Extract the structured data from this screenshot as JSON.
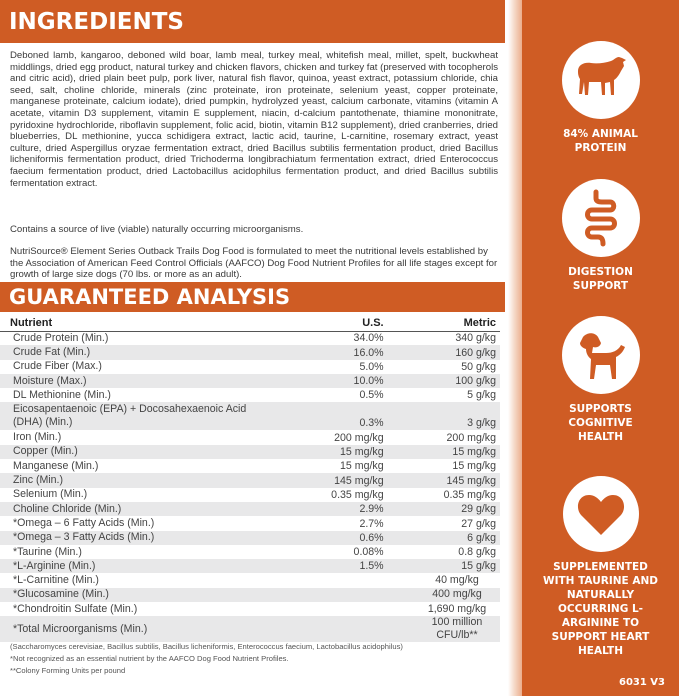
{
  "ingredients": {
    "title": "INGREDIENTS",
    "text": "Deboned lamb, kangaroo, deboned wild boar, lamb meal, turkey meal, whitefish meal, millet, spelt, buckwheat middlings, dried egg product, natural turkey and chicken flavors, chicken and turkey fat (preserved with tocopherols and citric acid), dried plain beet pulp, pork liver, natural fish flavor, quinoa, yeast extract, potassium chloride, chia seed, salt, choline chloride, minerals (zinc proteinate, iron proteinate, selenium yeast, copper proteinate, manganese proteinate, calcium iodate), dried pumpkin, hydrolyzed yeast, calcium carbonate, vitamins (vitamin A acetate, vitamin D3 supplement, vitamin E supplement, niacin, d-calcium pantothenate, thiamine mononitrate, pyridoxine hydrochloride, riboflavin supplement, folic acid, biotin, vitamin B12 supplement), dried cranberries, dried blueberries, DL methionine, yucca schidigera extract, lactic acid, taurine, L-carnitine, rosemary extract, yeast culture, dried Aspergillus oryzae fermentation extract, dried Bacillus subtilis fermentation product, dried Bacillus licheniformis fermentation product, dried Trichoderma longibrachiatum fermentation extract, dried Enterococcus faecium fermentation product, dried Lactobacillus acidophilus fermentation product, and dried Bacillus subtilis fermentation extract.",
    "microorganisms": "Contains a source of live (viable) naturally occurring microorganisms.",
    "aafco": "NutriSource® Element Series Outback Trails Dog Food is formulated to meet the nutritional levels established by the Association of American Feed Control Officials (AAFCO) Dog Food Nutrient Profiles for all life stages except for growth of large size dogs (70 lbs. or more as an adult)."
  },
  "analysis": {
    "title": "GUARANTEED ANALYSIS",
    "headers": [
      "Nutrient",
      "U.S.",
      "Metric"
    ],
    "rows": [
      [
        "Crude Protein (Min.)",
        "34.0%",
        "340 g/kg"
      ],
      [
        "Crude Fat (Min.)",
        "16.0%",
        "160 g/kg"
      ],
      [
        "Crude Fiber (Max.)",
        "5.0%",
        "50 g/kg"
      ],
      [
        "Moisture (Max.)",
        "10.0%",
        "100 g/kg"
      ],
      [
        "DL Methionine (Min.)",
        "0.5%",
        "5 g/kg"
      ],
      [
        "Eicosapentaenoic (EPA) + Docosahexaenoic Acid (DHA) (Min.)",
        "0.3%",
        "3 g/kg"
      ],
      [
        "Iron (Min.)",
        "200 mg/kg",
        "200 mg/kg"
      ],
      [
        "Copper (Min.)",
        "15 mg/kg",
        "15 mg/kg"
      ],
      [
        "Manganese (Min.)",
        "15 mg/kg",
        "15 mg/kg"
      ],
      [
        "Zinc (Min.)",
        "145 mg/kg",
        "145 mg/kg"
      ],
      [
        "Selenium (Min.)",
        "0.35 mg/kg",
        "0.35 mg/kg"
      ],
      [
        "Choline Chloride (Min.)",
        "2.9%",
        "29 g/kg"
      ],
      [
        "*Omega – 6 Fatty Acids (Min.)",
        "2.7%",
        "27 g/kg"
      ],
      [
        "*Omega – 3 Fatty Acids (Min.)",
        "0.6%",
        "6 g/kg"
      ],
      [
        "*Taurine (Min.)",
        "0.08%",
        "0.8 g/kg"
      ],
      [
        "*L-Arginine (Min.)",
        "1.5%",
        "15 g/kg"
      ],
      [
        "*L-Carnitine (Min.)",
        "40 mg/kg"
      ],
      [
        "*Glucosamine (Min.)",
        "400 mg/kg"
      ],
      [
        "*Chondroitin Sulfate (Min.)",
        "1,690 mg/kg"
      ],
      [
        "*Total Microorganisms (Min.)",
        "100 million CFU/lb**"
      ]
    ],
    "notes": [
      "(Saccharomyces cerevisiae, Bacillus subtilis, Bacillus licheniformis, Enterococcus faecium, Lactobacillus acidophilus)",
      "*Not recognized as an essential nutrient by the AAFCO Dog Food Nutrient Profiles.",
      "**Colony Forming Units per pound"
    ]
  },
  "features": [
    {
      "icon": "lamb-icon",
      "label": "84% ANIMAL PROTEIN"
    },
    {
      "icon": "intestine-icon",
      "label": "DIGESTION SUPPORT"
    },
    {
      "icon": "puppy-icon",
      "label": "SUPPORTS COGNITIVE HEALTH"
    },
    {
      "icon": "heart-icon",
      "label": "SUPPLEMENTED WITH TAURINE AND NATURALLY OCCURRING L-ARGININE TO SUPPORT HEART HEALTH"
    }
  ],
  "code": "6031 V3",
  "colors": {
    "accent": "#cf5c24",
    "row_alt": "#e8e8e9"
  }
}
